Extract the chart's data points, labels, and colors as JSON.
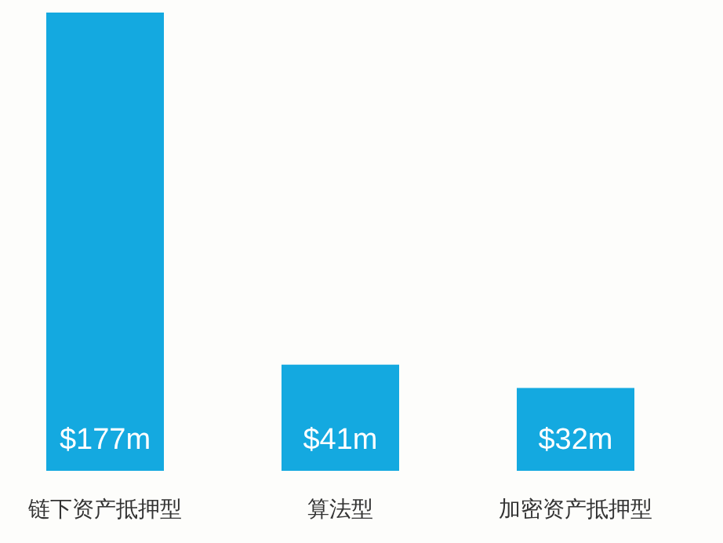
{
  "chart_data": {
    "type": "bar",
    "categories": [
      "链下资产抵押型",
      "算法型",
      "加密资产抵押型"
    ],
    "values": [
      177,
      41,
      32
    ],
    "value_labels": [
      "$177m",
      "$41m",
      "$32m"
    ],
    "color": "#14a9e0"
  }
}
